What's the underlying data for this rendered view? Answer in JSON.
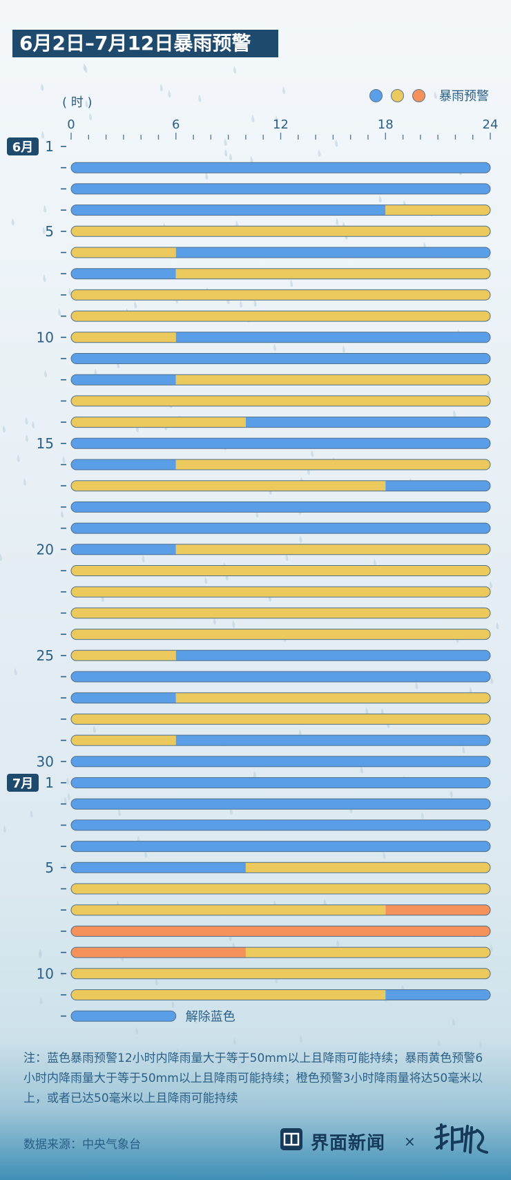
{
  "title": "6月2日–7月12日暴雨预警",
  "unit_label": "( 时 )",
  "legend": {
    "label": "暴雨预警",
    "colors": [
      "#5b9ee8",
      "#ecc95c",
      "#f5915a"
    ]
  },
  "colors": {
    "blue": "#5b9ee8",
    "yellow": "#ecc95c",
    "orange": "#f5915a"
  },
  "note": "注：蓝色暴雨预警12小时内降雨量大于等于50mm以上且降雨可能持续；暴雨黄色预警6小时内降雨量大于等于50mm以上且降雨可能持续；橙色预警3小时降雨量将达50毫米以上，或者已达50毫米以上且降雨可能持续",
  "source": "数据来源：中央气象台",
  "brand": {
    "name": "界面新闻",
    "separator": "×"
  },
  "chart_data": {
    "type": "bar",
    "orientation": "horizontal-timeline",
    "x_ticks": [
      "0",
      "6",
      "12",
      "18",
      "24"
    ],
    "xlim": [
      0,
      24
    ],
    "month_badges": [
      {
        "label": "6月",
        "row": 0
      },
      {
        "label": "7月",
        "row": 30
      }
    ],
    "rows": [
      {
        "label": "1",
        "segments": []
      },
      {
        "label": "",
        "segments": [
          [
            "blue",
            0,
            24
          ]
        ]
      },
      {
        "label": "",
        "segments": [
          [
            "blue",
            0,
            24
          ]
        ]
      },
      {
        "label": "",
        "segments": [
          [
            "blue",
            0,
            18
          ],
          [
            "yellow",
            18,
            24
          ]
        ]
      },
      {
        "label": "5",
        "segments": [
          [
            "yellow",
            0,
            24
          ]
        ]
      },
      {
        "label": "",
        "segments": [
          [
            "yellow",
            0,
            6
          ],
          [
            "blue",
            6,
            24
          ]
        ]
      },
      {
        "label": "",
        "segments": [
          [
            "blue",
            0,
            6
          ],
          [
            "yellow",
            6,
            24
          ]
        ]
      },
      {
        "label": "",
        "segments": [
          [
            "yellow",
            0,
            24
          ]
        ]
      },
      {
        "label": "",
        "segments": [
          [
            "yellow",
            0,
            24
          ]
        ]
      },
      {
        "label": "10",
        "segments": [
          [
            "yellow",
            0,
            6
          ],
          [
            "blue",
            6,
            24
          ]
        ]
      },
      {
        "label": "",
        "segments": [
          [
            "blue",
            0,
            24
          ]
        ]
      },
      {
        "label": "",
        "segments": [
          [
            "blue",
            0,
            6
          ],
          [
            "yellow",
            6,
            24
          ]
        ]
      },
      {
        "label": "",
        "segments": [
          [
            "yellow",
            0,
            24
          ]
        ]
      },
      {
        "label": "",
        "segments": [
          [
            "yellow",
            0,
            10
          ],
          [
            "blue",
            10,
            24
          ]
        ]
      },
      {
        "label": "15",
        "segments": [
          [
            "blue",
            0,
            24
          ]
        ]
      },
      {
        "label": "",
        "segments": [
          [
            "blue",
            0,
            6
          ],
          [
            "yellow",
            6,
            24
          ]
        ]
      },
      {
        "label": "",
        "segments": [
          [
            "yellow",
            0,
            18
          ],
          [
            "blue",
            18,
            24
          ]
        ]
      },
      {
        "label": "",
        "segments": [
          [
            "blue",
            0,
            24
          ]
        ]
      },
      {
        "label": "",
        "segments": [
          [
            "blue",
            0,
            24
          ]
        ]
      },
      {
        "label": "20",
        "segments": [
          [
            "blue",
            0,
            6
          ],
          [
            "yellow",
            6,
            24
          ]
        ]
      },
      {
        "label": "",
        "segments": [
          [
            "yellow",
            0,
            24
          ]
        ]
      },
      {
        "label": "",
        "segments": [
          [
            "yellow",
            0,
            24
          ]
        ]
      },
      {
        "label": "",
        "segments": [
          [
            "yellow",
            0,
            24
          ]
        ]
      },
      {
        "label": "",
        "segments": [
          [
            "yellow",
            0,
            24
          ]
        ]
      },
      {
        "label": "25",
        "segments": [
          [
            "yellow",
            0,
            6
          ],
          [
            "blue",
            6,
            24
          ]
        ]
      },
      {
        "label": "",
        "segments": [
          [
            "blue",
            0,
            24
          ]
        ]
      },
      {
        "label": "",
        "segments": [
          [
            "blue",
            0,
            6
          ],
          [
            "yellow",
            6,
            24
          ]
        ]
      },
      {
        "label": "",
        "segments": [
          [
            "yellow",
            0,
            24
          ]
        ]
      },
      {
        "label": "",
        "segments": [
          [
            "yellow",
            0,
            6
          ],
          [
            "blue",
            6,
            24
          ]
        ]
      },
      {
        "label": "30",
        "segments": [
          [
            "blue",
            0,
            24
          ]
        ]
      },
      {
        "label": "1",
        "segments": [
          [
            "blue",
            0,
            24
          ]
        ]
      },
      {
        "label": "",
        "segments": [
          [
            "blue",
            0,
            24
          ]
        ]
      },
      {
        "label": "",
        "segments": [
          [
            "blue",
            0,
            24
          ]
        ]
      },
      {
        "label": "",
        "segments": [
          [
            "blue",
            0,
            24
          ]
        ]
      },
      {
        "label": "5",
        "segments": [
          [
            "blue",
            0,
            10
          ],
          [
            "yellow",
            10,
            24
          ]
        ]
      },
      {
        "label": "",
        "segments": [
          [
            "yellow",
            0,
            24
          ]
        ]
      },
      {
        "label": "",
        "segments": [
          [
            "yellow",
            0,
            18
          ],
          [
            "orange",
            18,
            24
          ]
        ]
      },
      {
        "label": "",
        "segments": [
          [
            "orange",
            0,
            24
          ]
        ]
      },
      {
        "label": "",
        "segments": [
          [
            "orange",
            0,
            10
          ],
          [
            "yellow",
            10,
            24
          ]
        ]
      },
      {
        "label": "10",
        "segments": [
          [
            "yellow",
            0,
            24
          ]
        ]
      },
      {
        "label": "",
        "segments": [
          [
            "yellow",
            0,
            18
          ],
          [
            "blue",
            18,
            24
          ]
        ]
      },
      {
        "label": "",
        "segments": [
          [
            "blue",
            0,
            6
          ]
        ],
        "annotation": "解除蓝色"
      }
    ]
  }
}
